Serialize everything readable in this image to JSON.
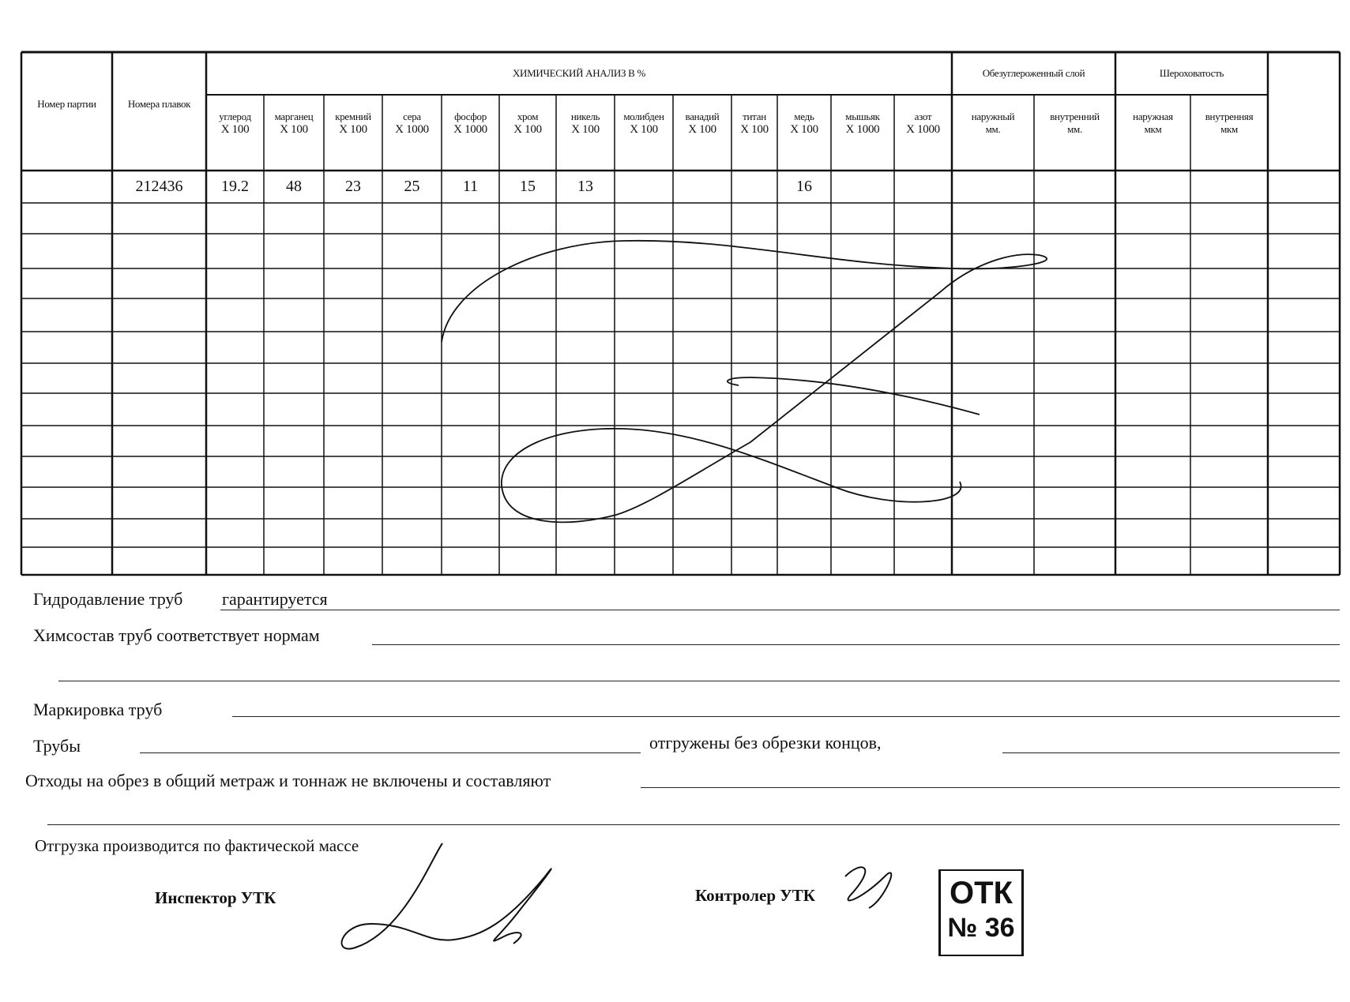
{
  "table": {
    "col_party": "Номер партии",
    "col_heat": "Номера плавок",
    "chem_title": "ХИМИЧЕСКИЙ АНАЛИЗ В  %",
    "chem_columns": [
      {
        "name": "углерод",
        "mult": "X 100"
      },
      {
        "name": "марганец",
        "mult": "X 100"
      },
      {
        "name": "кремний",
        "mult": "X 100"
      },
      {
        "name": "сера",
        "mult": "X 1000"
      },
      {
        "name": "фосфор",
        "mult": "X 1000"
      },
      {
        "name": "хром",
        "mult": "X 100"
      },
      {
        "name": "никель",
        "mult": "X 100"
      },
      {
        "name": "молибден",
        "mult": "X 100"
      },
      {
        "name": "ванадий",
        "mult": "X 100"
      },
      {
        "name": "титан",
        "mult": "X 100"
      },
      {
        "name": "медь",
        "mult": "X 100"
      },
      {
        "name": "мышьяк",
        "mult": "X 1000"
      },
      {
        "name": "азот",
        "mult": "X 1000"
      }
    ],
    "decarb": {
      "title": "Обезуглероженный слой",
      "cols": [
        {
          "name": "наружный",
          "unit": "мм."
        },
        {
          "name": "внутренний",
          "unit": "мм."
        }
      ]
    },
    "rough": {
      "title": "Шероховатость",
      "cols": [
        {
          "name": "наружная",
          "unit": "мкм"
        },
        {
          "name": "внутренняя",
          "unit": "мкм"
        }
      ]
    },
    "rows": [
      {
        "party": "",
        "heat": "212436",
        "values": [
          "19.2",
          "48",
          "23",
          "25",
          "11",
          "15",
          "13",
          "",
          "",
          "",
          "16",
          "",
          ""
        ]
      }
    ]
  },
  "form": {
    "hydro_label": "Гидродавление труб",
    "hydro_value": "гарантируется",
    "chem_label": "Химсостав труб соответствует нормам",
    "marking_label": "Маркировка труб",
    "pipes_label": "Трубы",
    "pipes_suffix": "отгружены без обрезки концов,",
    "waste_label": "Отходы на обрез в общий метраж и тоннаж не включены и составляют",
    "shipping_note": "Отгрузка производится по фактической массе",
    "inspector_label": "Инспектор  УТК",
    "controller_label": "Контролер УТК"
  },
  "stamp": {
    "line1": "ОТК",
    "line2": "№ 36"
  }
}
